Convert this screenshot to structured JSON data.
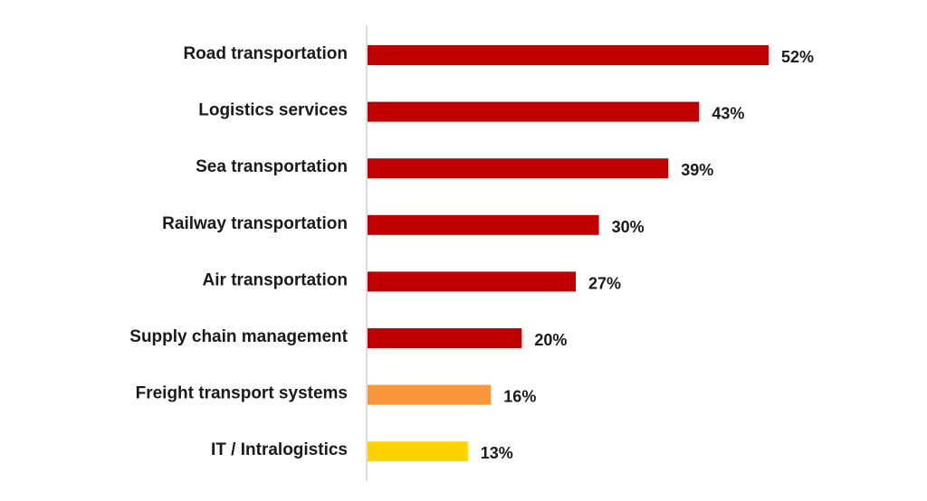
{
  "chart_data": {
    "type": "bar",
    "orientation": "horizontal",
    "title": "",
    "xlabel": "",
    "ylabel": "",
    "xlim": [
      0,
      52
    ],
    "grid": false,
    "categories": [
      "Road transportation",
      "Logistics services",
      "Sea transportation",
      "Railway transportation",
      "Air transportation",
      "Supply chain management",
      "Freight transport systems",
      "IT / Intralogistics"
    ],
    "values": [
      52,
      43,
      39,
      30,
      27,
      20,
      16,
      13
    ],
    "value_labels": [
      "52%",
      "43%",
      "39%",
      "30%",
      "27%",
      "20%",
      "16%",
      "13%"
    ],
    "colors": [
      "#C00000",
      "#C00000",
      "#C00000",
      "#C00000",
      "#C00000",
      "#C00000",
      "#F7963A",
      "#FFD200"
    ]
  }
}
